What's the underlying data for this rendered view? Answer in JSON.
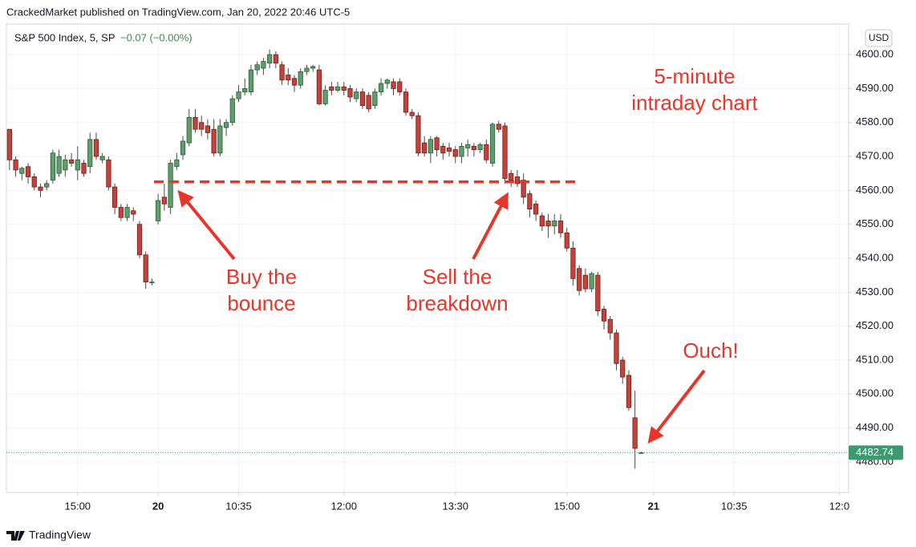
{
  "header": "CrackedMarket published on TradingView.com, Jan 20, 2022 20:46 UTC-5",
  "footer": "TradingView",
  "currency": "USD",
  "chart_data": {
    "type": "candlestick",
    "title": "S&P 500 Index, 5, SP",
    "change_label": "−0.07 (−0.00%)",
    "up_color": "#5e9e6b",
    "down_color": "#c8403a",
    "grid": true,
    "open": [
      4578,
      4569,
      4565,
      4567,
      4564,
      4561,
      4561,
      4563,
      4565,
      4566,
      4569,
      4566,
      4568,
      4567,
      4575,
      4569,
      4569,
      4561,
      4555,
      4552,
      4554,
      4550,
      4541,
      4533,
      4551,
      4558,
      4555,
      4567,
      4570.5,
      4574,
      4581.5,
      4580,
      4579,
      4578,
      4571,
      4578.5,
      4580,
      4587,
      4589,
      4589,
      4595.5,
      4596,
      4597.5,
      4600,
      4597,
      4594,
      4593,
      4591,
      4595,
      4596,
      4595.5,
      4585.5,
      4590.5,
      4589.5,
      4590.5,
      4590,
      4587,
      4589,
      4588,
      4585,
      4589,
      4591.5,
      4592,
      4592,
      4589,
      4583,
      4582,
      4574,
      4571,
      4575.5,
      4573,
      4572.5,
      4572,
      4570,
      4572.5,
      4573,
      4572,
      4573.5,
      4568,
      4579.5,
      4579,
      4565,
      4564,
      4563,
      4559,
      4556,
      4552.5,
      4551,
      4549.5,
      4551,
      4547.5,
      4543,
      4537,
      4535,
      4531,
      4535,
      4525,
      4522,
      4518,
      4510,
      4505.5,
      4493,
      4482.5
    ],
    "high": [
      4578,
      4570,
      4567,
      4568,
      4565,
      4562,
      4563,
      4572,
      4572,
      4570.5,
      4571,
      4573,
      4569,
      4577,
      4577,
      4571,
      4570,
      4562,
      4556,
      4556,
      4555,
      4551,
      4542,
      4534,
      4559,
      4562,
      4569,
      4571,
      4576,
      4584,
      4584,
      4582,
      4581,
      4581,
      4581,
      4581,
      4588,
      4591,
      4593,
      4597,
      4598,
      4599,
      4601.5,
      4601,
      4598,
      4596,
      4594,
      4596,
      4597,
      4597,
      4597,
      4591,
      4592,
      4592,
      4592,
      4591,
      4590,
      4590,
      4589,
      4590,
      4593,
      4593,
      4593,
      4593,
      4590,
      4584,
      4583,
      4576,
      4576,
      4576,
      4574,
      4574,
      4573,
      4574,
      4575,
      4574,
      4574,
      4575,
      4580,
      4580.5,
      4580,
      4566,
      4566,
      4565,
      4560,
      4557,
      4553.5,
      4553,
      4553,
      4553,
      4549,
      4545,
      4538,
      4537,
      4536,
      4536,
      4526,
      4523,
      4519,
      4511,
      4507,
      4501,
      4483
    ],
    "low": [
      4566,
      4564,
      4563,
      4562,
      4560,
      4558,
      4560,
      4562,
      4564,
      4564,
      4567,
      4563,
      4564,
      4565,
      4569,
      4568,
      4560,
      4553,
      4551,
      4551,
      4551,
      4540,
      4531,
      4532,
      4550,
      4554,
      4553,
      4566,
      4569,
      4573,
      4577,
      4576,
      4575,
      4570,
      4570,
      4576,
      4579,
      4586,
      4588,
      4588,
      4594,
      4594,
      4596,
      4596,
      4591,
      4591,
      4589,
      4590,
      4594,
      4595,
      4585,
      4585,
      4588,
      4589,
      4588,
      4586,
      4586,
      4584,
      4583,
      4584,
      4588,
      4590,
      4588,
      4588,
      4582,
      4581,
      4570,
      4570,
      4568,
      4570,
      4569,
      4570,
      4568,
      4568,
      4570,
      4570,
      4571,
      4568,
      4567,
      4577,
      4562,
      4561,
      4561,
      4556,
      4552,
      4551,
      4548,
      4546,
      4547,
      4546,
      4542,
      4532,
      4529,
      4530,
      4530,
      4523,
      4519,
      4516,
      4507,
      4503,
      4495,
      4478,
      4482.5
    ],
    "close": [
      4569,
      4566,
      4566.5,
      4564,
      4561,
      4560,
      4562,
      4571,
      4570,
      4569,
      4568,
      4569,
      4565,
      4575,
      4570,
      4570,
      4561,
      4555,
      4552,
      4555,
      4553,
      4541,
      4533,
      4533,
      4557,
      4556,
      4568,
      4569,
      4574.5,
      4581.5,
      4578,
      4578,
      4577,
      4571,
      4579,
      4580,
      4587,
      4589,
      4590,
      4595.5,
      4597,
      4598,
      4600,
      4597.5,
      4592.5,
      4592.5,
      4591,
      4595,
      4596,
      4596.5,
      4585.5,
      4589.5,
      4589.5,
      4590.5,
      4589.5,
      4587.5,
      4589,
      4585,
      4584,
      4589,
      4591.5,
      4592.5,
      4590,
      4589,
      4583,
      4582,
      4571,
      4571,
      4575,
      4572,
      4571,
      4571.5,
      4570,
      4573,
      4573.5,
      4572,
      4573.5,
      4569,
      4579.5,
      4578,
      4563.5,
      4563,
      4562,
      4558,
      4554.5,
      4553,
      4549.5,
      4549.5,
      4551,
      4547.5,
      4543,
      4534,
      4530.5,
      4531,
      4535.5,
      4524.5,
      4521.5,
      4518,
      4509,
      4505,
      4496,
      4484,
      4482.74
    ],
    "last_price": 4482.74,
    "support_level": 4562.5,
    "xlim": [
      -0.5,
      135.5
    ],
    "xticks": [
      {
        "value": 11,
        "label": "15:00"
      },
      {
        "value": 24,
        "label": "20"
      },
      {
        "value": 37,
        "label": "10:35"
      },
      {
        "value": 54,
        "label": "12:00"
      },
      {
        "value": 72,
        "label": "13:30"
      },
      {
        "value": 90,
        "label": "15:00"
      },
      {
        "value": 104,
        "label": "21"
      },
      {
        "value": 117,
        "label": "10:35"
      },
      {
        "value": 134,
        "label": "12:0"
      }
    ],
    "ylim": [
      4471,
      4609
    ],
    "yticks": [
      {
        "value": 4480,
        "label": "4480.00"
      },
      {
        "value": 4490,
        "label": "4490.00"
      },
      {
        "value": 4500,
        "label": "4500.00"
      },
      {
        "value": 4510,
        "label": "4510.00"
      },
      {
        "value": 4520,
        "label": "4520.00"
      },
      {
        "value": 4530,
        "label": "4530.00"
      },
      {
        "value": 4540,
        "label": "4540.00"
      },
      {
        "value": 4550,
        "label": "4550.00"
      },
      {
        "value": 4560,
        "label": "4560.00"
      },
      {
        "value": 4570,
        "label": "4570.00"
      },
      {
        "value": 4580,
        "label": "4580.00"
      },
      {
        "value": 4590,
        "label": "4590.00"
      },
      {
        "value": 4600,
        "label": "4600.00"
      }
    ],
    "annotations": [
      {
        "lines": [
          "5-minute",
          "intraday chart"
        ]
      },
      {
        "lines": [
          "Buy the",
          "bounce"
        ]
      },
      {
        "lines": [
          "Sell the",
          "breakdown"
        ]
      },
      {
        "lines": [
          "Ouch!"
        ]
      }
    ]
  }
}
